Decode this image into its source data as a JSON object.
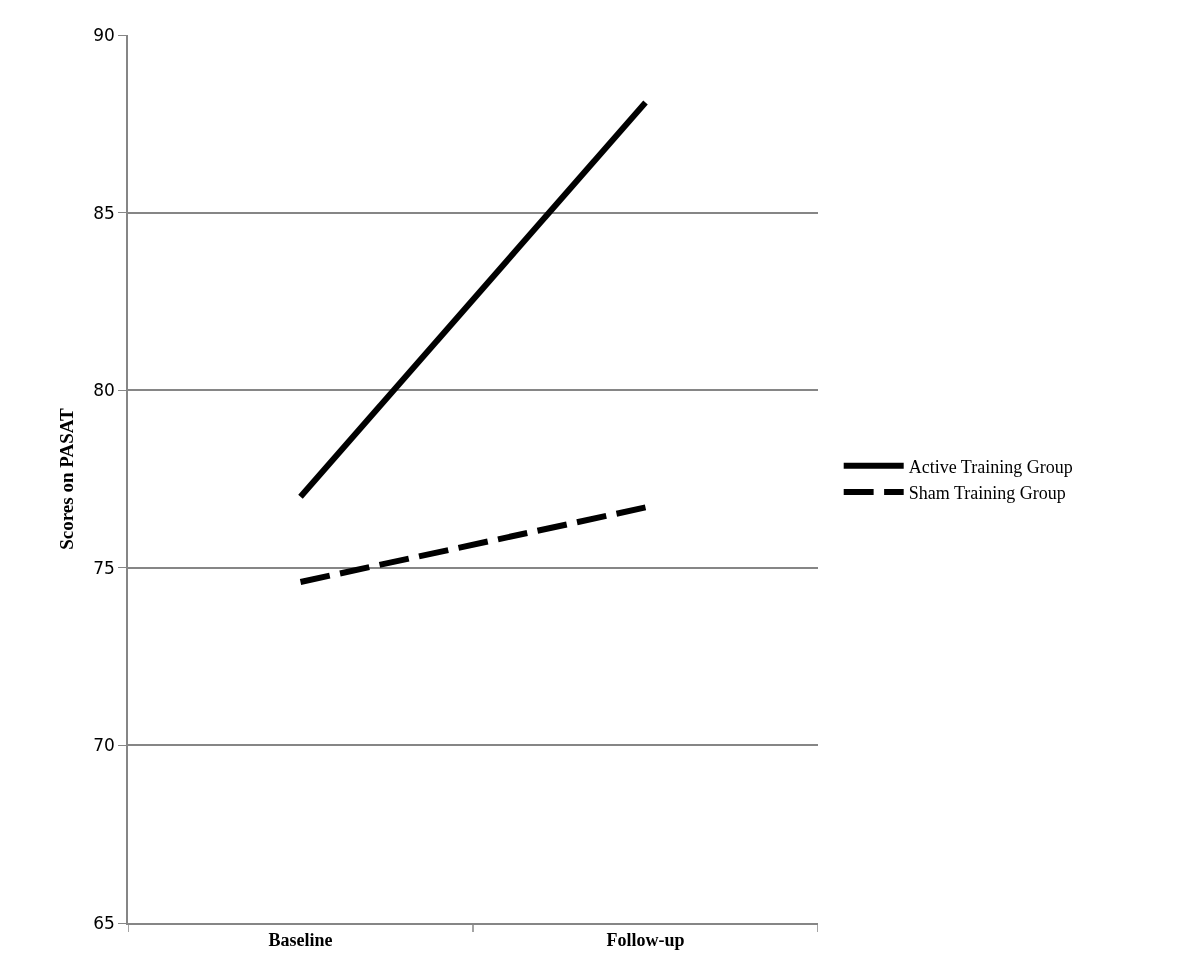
{
  "chart_data": {
    "type": "line",
    "ylabel": "Scores on PASAT",
    "categories": [
      "Baseline",
      "Follow-up"
    ],
    "series": [
      {
        "name": "Active Training Group",
        "color": "#000000",
        "values": [
          77.0,
          88.1
        ],
        "line_style": "solid"
      },
      {
        "name": "Sham Training Group",
        "color": "#000000",
        "values": [
          74.6,
          76.7
        ],
        "line_style": "dashed"
      }
    ],
    "ylim": [
      65,
      90
    ],
    "yticks": [
      65,
      70,
      75,
      80,
      85,
      90
    ],
    "grid": "y",
    "legend": "right",
    "marker": "none"
  }
}
